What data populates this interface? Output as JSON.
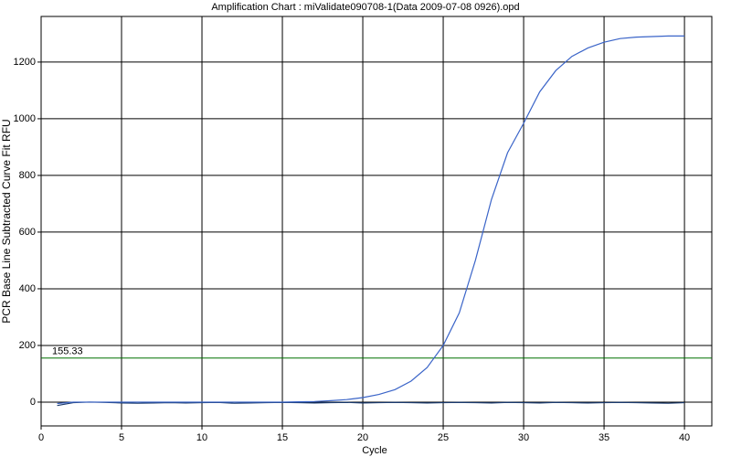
{
  "chart_data": {
    "type": "line",
    "title": "Amplification Chart : miValidate090708-1(Data 2009-07-08 0926).opd",
    "x_label": "Cycle",
    "y_label": "PCR Base Line Subtracted Curve Fit RFU",
    "x": [
      1,
      2,
      3,
      4,
      5,
      6,
      7,
      8,
      9,
      10,
      11,
      12,
      13,
      14,
      15,
      16,
      17,
      18,
      19,
      20,
      21,
      22,
      23,
      24,
      25,
      26,
      27,
      28,
      29,
      30,
      31,
      32,
      33,
      34,
      35,
      36,
      37,
      38,
      39,
      40
    ],
    "series": [
      {
        "color": "#1a3a6e",
        "values": [
          -12,
          -2,
          0,
          -1,
          -3,
          -4,
          -3,
          -2,
          -3,
          -2,
          -1,
          -4,
          -3,
          -2,
          -1,
          -2,
          -3,
          -2,
          -1,
          -3,
          -2,
          -1,
          -2,
          -3,
          -2,
          -1,
          -2,
          -3,
          -1,
          -2,
          -3,
          -1,
          -2,
          -3,
          -2,
          -1,
          -2,
          -3,
          -4,
          -2
        ]
      },
      {
        "color": "#3a64c8",
        "values": [
          -5,
          0,
          0,
          0,
          0,
          0,
          0,
          0,
          0,
          0,
          0,
          0,
          0,
          0,
          0,
          1,
          2,
          5,
          9,
          16,
          27,
          44,
          74,
          122,
          200,
          315,
          500,
          715,
          880,
          984,
          1095,
          1170,
          1220,
          1250,
          1270,
          1283,
          1288,
          1290,
          1292,
          1292
        ]
      }
    ],
    "threshold": {
      "value": 155.33,
      "label": "155.33",
      "color": "#007000"
    },
    "xlim": [
      0,
      41.7
    ],
    "ylim": [
      -84,
      1361
    ],
    "xticks": [
      0,
      5,
      10,
      15,
      20,
      25,
      30,
      35,
      40
    ],
    "yticks": [
      0,
      200,
      400,
      600,
      800,
      1000,
      1200
    ],
    "grid": true
  }
}
